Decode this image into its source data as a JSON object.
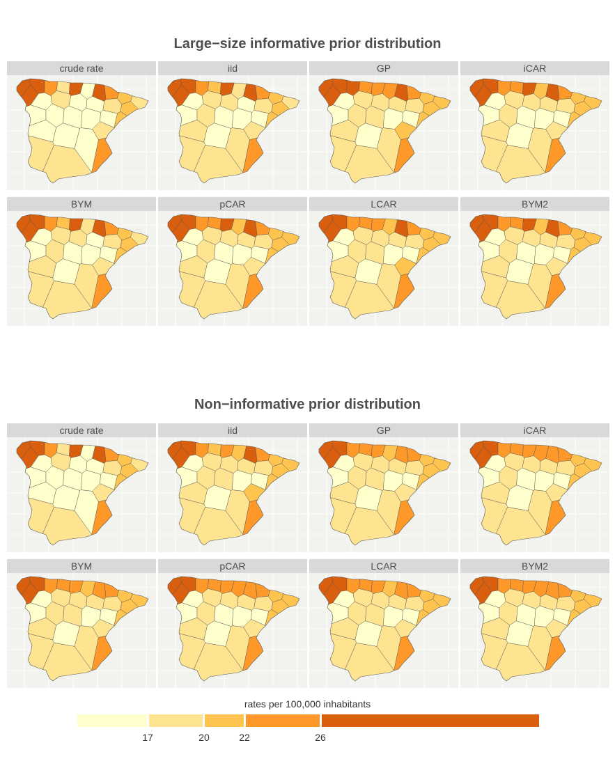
{
  "sections": [
    {
      "title": "Large−size informative prior distribution",
      "panels": [
        {
          "label": "crude rate",
          "classes": [
            4,
            4,
            4,
            3,
            1,
            4,
            0,
            4,
            3,
            2,
            1,
            2,
            1,
            0,
            0,
            1,
            0,
            0,
            0,
            0,
            0,
            0,
            2,
            1,
            3,
            0,
            0,
            0,
            1,
            1
          ]
        },
        {
          "label": "iid",
          "classes": [
            4,
            4,
            4,
            3,
            2,
            4,
            1,
            4,
            3,
            2,
            1,
            2,
            1,
            0,
            1,
            1,
            0,
            0,
            1,
            0,
            0,
            0,
            2,
            1,
            3,
            1,
            0,
            1,
            1,
            1
          ]
        },
        {
          "label": "GP",
          "classes": [
            4,
            4,
            4,
            4,
            3,
            3,
            3,
            4,
            3,
            2,
            2,
            2,
            1,
            1,
            1,
            1,
            0,
            0,
            1,
            1,
            0,
            0,
            2,
            2,
            3,
            1,
            0,
            1,
            1,
            1
          ]
        },
        {
          "label": "iCAR",
          "classes": [
            4,
            4,
            4,
            3,
            3,
            4,
            2,
            4,
            3,
            2,
            2,
            2,
            1,
            1,
            1,
            1,
            0,
            0,
            1,
            0,
            0,
            0,
            2,
            1,
            3,
            1,
            0,
            1,
            1,
            1
          ]
        },
        {
          "label": "BYM",
          "classes": [
            4,
            4,
            4,
            3,
            2,
            4,
            1,
            4,
            3,
            2,
            1,
            2,
            1,
            0,
            1,
            1,
            0,
            0,
            1,
            0,
            0,
            0,
            2,
            1,
            3,
            1,
            0,
            1,
            1,
            1
          ]
        },
        {
          "label": "pCAR",
          "classes": [
            4,
            4,
            4,
            3,
            3,
            4,
            2,
            4,
            3,
            2,
            2,
            2,
            1,
            1,
            1,
            1,
            0,
            0,
            1,
            0,
            0,
            0,
            2,
            1,
            3,
            1,
            0,
            1,
            1,
            1
          ]
        },
        {
          "label": "LCAR",
          "classes": [
            4,
            4,
            4,
            3,
            3,
            3,
            2,
            4,
            3,
            2,
            2,
            2,
            1,
            1,
            1,
            1,
            0,
            0,
            1,
            1,
            0,
            0,
            2,
            2,
            3,
            1,
            0,
            1,
            1,
            1
          ]
        },
        {
          "label": "BYM2",
          "classes": [
            4,
            4,
            4,
            3,
            3,
            4,
            2,
            4,
            3,
            2,
            2,
            2,
            1,
            1,
            1,
            1,
            0,
            0,
            1,
            0,
            0,
            0,
            2,
            1,
            3,
            1,
            0,
            1,
            1,
            1
          ]
        }
      ]
    },
    {
      "title": "Non−informative prior distribution",
      "panels": [
        {
          "label": "crude rate",
          "classes": [
            4,
            4,
            4,
            3,
            1,
            4,
            0,
            4,
            3,
            2,
            1,
            2,
            1,
            0,
            0,
            1,
            0,
            0,
            0,
            0,
            0,
            0,
            2,
            1,
            3,
            0,
            0,
            0,
            1,
            1
          ]
        },
        {
          "label": "iid",
          "classes": [
            4,
            4,
            4,
            3,
            2,
            3,
            2,
            4,
            3,
            2,
            2,
            2,
            1,
            1,
            1,
            1,
            0,
            0,
            1,
            1,
            0,
            0,
            2,
            2,
            3,
            1,
            0,
            1,
            1,
            1
          ]
        },
        {
          "label": "GP",
          "classes": [
            4,
            4,
            4,
            3,
            3,
            3,
            2,
            3,
            3,
            2,
            2,
            2,
            1,
            1,
            1,
            1,
            0,
            0,
            1,
            1,
            0,
            0,
            2,
            1,
            3,
            1,
            0,
            1,
            1,
            1
          ]
        },
        {
          "label": "iCAR",
          "classes": [
            4,
            4,
            4,
            3,
            3,
            3,
            3,
            3,
            3,
            2,
            2,
            2,
            1,
            1,
            1,
            1,
            0,
            0,
            1,
            0,
            0,
            0,
            2,
            1,
            3,
            1,
            0,
            1,
            1,
            1
          ]
        },
        {
          "label": "BYM",
          "classes": [
            4,
            4,
            4,
            3,
            3,
            3,
            2,
            3,
            3,
            2,
            2,
            2,
            1,
            1,
            1,
            1,
            0,
            0,
            1,
            1,
            0,
            0,
            2,
            1,
            3,
            1,
            0,
            1,
            1,
            1
          ]
        },
        {
          "label": "pCAR",
          "classes": [
            4,
            4,
            4,
            3,
            3,
            3,
            3,
            3,
            3,
            2,
            2,
            2,
            1,
            1,
            1,
            1,
            0,
            0,
            1,
            0,
            0,
            0,
            2,
            1,
            3,
            1,
            0,
            1,
            1,
            1
          ]
        },
        {
          "label": "LCAR",
          "classes": [
            4,
            4,
            4,
            3,
            3,
            3,
            2,
            3,
            3,
            2,
            2,
            2,
            1,
            1,
            1,
            1,
            0,
            0,
            1,
            1,
            0,
            0,
            2,
            1,
            3,
            1,
            0,
            1,
            1,
            1
          ]
        },
        {
          "label": "BYM2",
          "classes": [
            4,
            4,
            4,
            3,
            3,
            3,
            3,
            3,
            3,
            2,
            2,
            2,
            1,
            1,
            1,
            1,
            0,
            0,
            1,
            0,
            0,
            0,
            2,
            1,
            3,
            1,
            0,
            1,
            1,
            1
          ]
        }
      ]
    }
  ],
  "legend": {
    "title": "rates per 100,000 inhabitants",
    "breaks": [
      "17",
      "20",
      "22",
      "26"
    ],
    "colors": [
      "#ffffcc",
      "#fee391",
      "#fec44f",
      "#fe9929",
      "#d95f0e"
    ]
  },
  "colors": {
    "panel_background": "#f2f2ee",
    "strip_background": "#d9d9d9",
    "region_border": "#555555"
  }
}
